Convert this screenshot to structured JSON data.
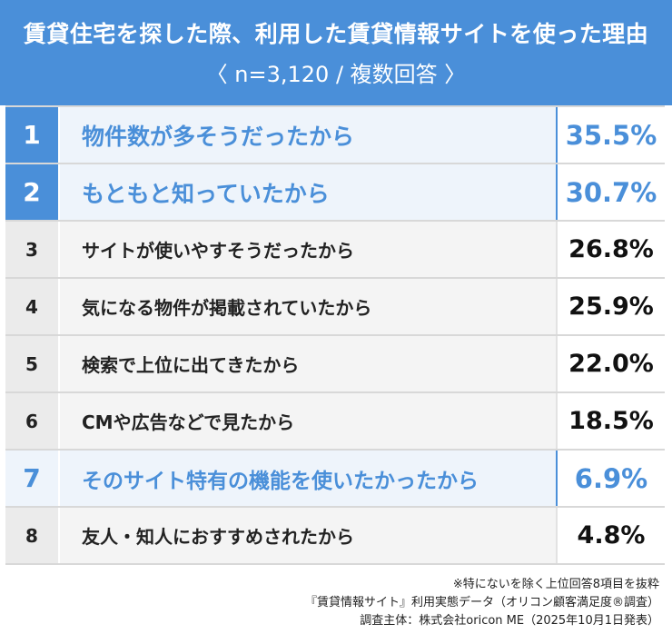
{
  "header": {
    "title": "賃貸住宅を探した際、利用した賃貸情報サイトを使った理由",
    "subtitle": "〈 n=3,120 / 複数回答 〉"
  },
  "chart_data": {
    "type": "table",
    "rows": [
      {
        "rank": "1",
        "label": "物件数が多そうだったから",
        "value": 35.5,
        "display": "35.5%",
        "style": "hl"
      },
      {
        "rank": "2",
        "label": "もともと知っていたから",
        "value": 30.7,
        "display": "30.7%",
        "style": "hl"
      },
      {
        "rank": "3",
        "label": "サイトが使いやすそうだったから",
        "value": 26.8,
        "display": "26.8%",
        "style": "plain"
      },
      {
        "rank": "4",
        "label": "気になる物件が掲載されていたから",
        "value": 25.9,
        "display": "25.9%",
        "style": "plain"
      },
      {
        "rank": "5",
        "label": "検索で上位に出てきたから",
        "value": 22.0,
        "display": "22.0%",
        "style": "plain"
      },
      {
        "rank": "6",
        "label": "CMや広告などで見たから",
        "value": 18.5,
        "display": "18.5%",
        "style": "plain"
      },
      {
        "rank": "7",
        "label": "そのサイト特有の機能を使いたかったから",
        "value": 6.9,
        "display": "6.9%",
        "style": "hl-soft"
      },
      {
        "rank": "8",
        "label": "友人・知人におすすめされたから",
        "value": 4.8,
        "display": "4.8%",
        "style": "plain"
      }
    ],
    "accent_color": "#4a8fd9"
  },
  "footer": {
    "note1": "※特にないを除く上位回答8項目を抜粋",
    "note2": "『賃貸情報サイト』利用実態データ（オリコン顧客満足度®調査）",
    "note3": "調査主体：株式会社oricon ME（2025年10月1日発表）"
  }
}
